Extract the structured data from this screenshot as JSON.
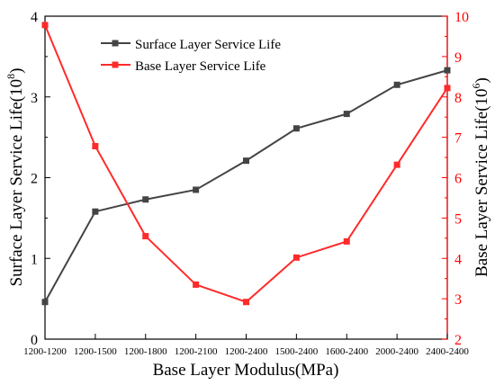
{
  "chart_data": {
    "type": "line",
    "categories": [
      "1200-1200",
      "1200-1500",
      "1200-1800",
      "1200-2100",
      "1200-2400",
      "1500-2400",
      "1600-2400",
      "2000-2400",
      "2400-2400"
    ],
    "xlabel": "Base Layer Modulus(MPa)",
    "y_left": {
      "label_base": "Surface Layer Service Life(10",
      "label_exp": "8",
      "label_end": ")",
      "ylim": [
        0,
        4
      ],
      "ticks": [
        "0",
        "1",
        "2",
        "3",
        "4"
      ],
      "color": "#000000"
    },
    "y_right": {
      "label_base": "Base Layer Service Life(10",
      "label_exp": "6",
      "label_end": ")",
      "ylim": [
        2,
        10
      ],
      "ticks": [
        "2",
        "3",
        "4",
        "5",
        "6",
        "7",
        "8",
        "9",
        "10"
      ],
      "color": "#ff0000"
    },
    "series": [
      {
        "name": "Surface Layer Service Life",
        "axis": "left",
        "color": "#444444",
        "marker": "square",
        "values": [
          0.46,
          1.58,
          1.73,
          1.85,
          2.21,
          2.61,
          2.79,
          3.15,
          3.33
        ]
      },
      {
        "name": "Base Layer Service Life",
        "axis": "right",
        "color": "#ff2a2a",
        "marker": "square",
        "values": [
          9.78,
          6.78,
          4.55,
          3.35,
          2.92,
          4.02,
          4.42,
          6.32,
          8.22
        ]
      }
    ],
    "grid": false,
    "legend": "top-center"
  }
}
